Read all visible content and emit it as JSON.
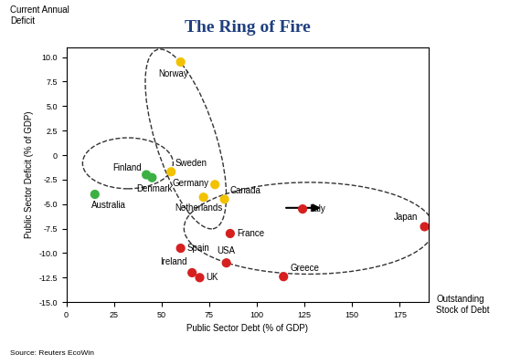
{
  "chart_data": {
    "type": "scatter",
    "title": "The Ring of Fire",
    "y_annotation": "Current Annual\nDeficit",
    "x_annotation": "Outstanding\nStock of Debt",
    "source": "Source: Reuters EcoWin",
    "xlabel": "Public Sector Debt (% of GDP)",
    "ylabel": "Public Sector Deficit (% of GDP)",
    "labels": [
      "Norway",
      "Sweden",
      "Germany",
      "Netherlands",
      "Canada",
      "Finland",
      "Denmark",
      "Australia",
      "Italy",
      "Japan",
      "France",
      "Spain",
      "USA",
      "Ireland",
      "UK",
      "Greece"
    ],
    "x": [
      60,
      55,
      78,
      72,
      83,
      42,
      45,
      15,
      124,
      188,
      86,
      60,
      84,
      66,
      70,
      114
    ],
    "values": [
      9.5,
      -1.7,
      -3.0,
      -4.3,
      -4.5,
      -2.0,
      -2.3,
      -4.0,
      -5.5,
      -7.3,
      -8.0,
      -9.5,
      -11.0,
      -12.0,
      -12.5,
      -12.4
    ],
    "colors": [
      "#f2c200",
      "#f2c200",
      "#f2c200",
      "#f2c200",
      "#f2c200",
      "#3cb043",
      "#3cb043",
      "#3cb043",
      "#d62020",
      "#d62020",
      "#d62020",
      "#d62020",
      "#d62020",
      "#d62020",
      "#d62020",
      "#d62020"
    ],
    "marker": "o",
    "xlim": [
      0,
      190
    ],
    "xticks": [
      0,
      25,
      50,
      75,
      100,
      125,
      150,
      175
    ],
    "ylim": [
      -15,
      11
    ],
    "yticks": [
      {
        "value": -15,
        "label": "-15.0"
      },
      -12.5,
      {
        "value": -10,
        "label": "-10.0"
      },
      -7.5,
      {
        "value": -5,
        "label": "-5.0"
      },
      -2.5,
      0,
      2.5,
      {
        "value": 5,
        "label": "5.0"
      },
      7.5,
      {
        "value": 10,
        "label": "10.0"
      }
    ],
    "grid": false
  }
}
